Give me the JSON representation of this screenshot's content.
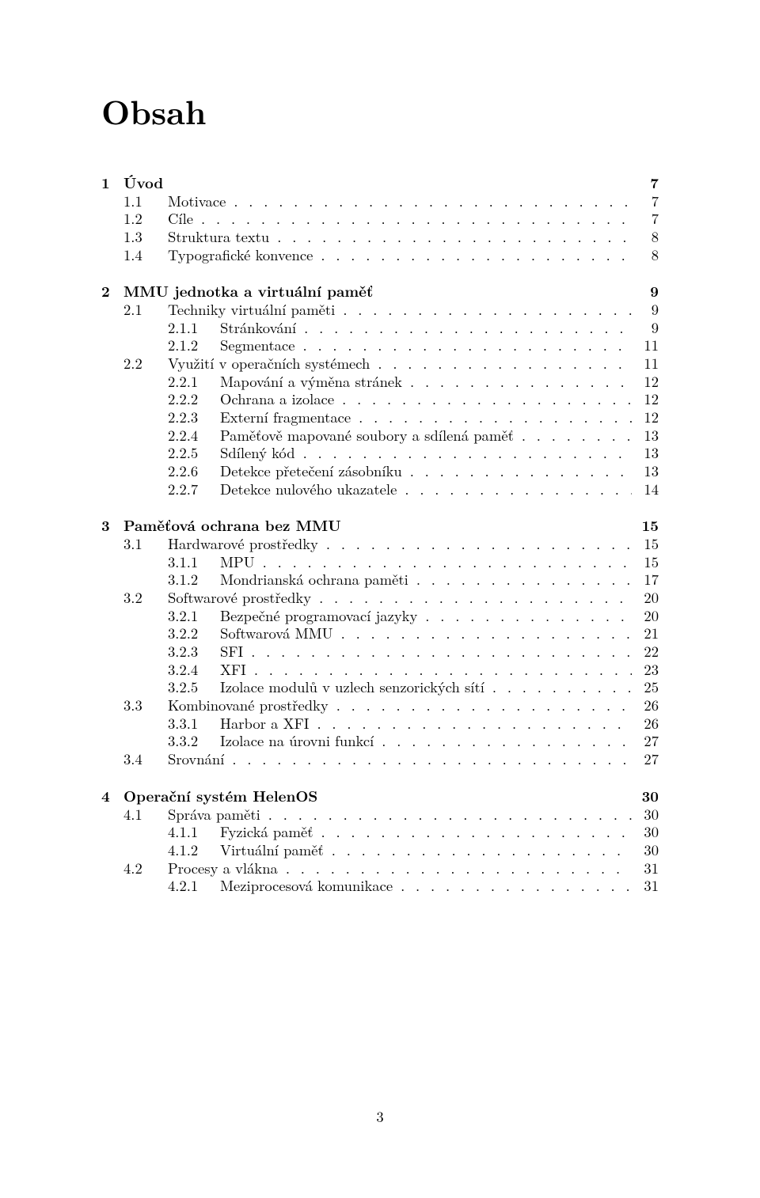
{
  "title": "Obsah",
  "footer_page": "3",
  "chapters": [
    {
      "num": "1",
      "title": "Úvod",
      "page": "7",
      "sections": [
        {
          "num": "1.1",
          "title": "Motivace",
          "page": "7",
          "subs": []
        },
        {
          "num": "1.2",
          "title": "Cíle",
          "page": "7",
          "subs": []
        },
        {
          "num": "1.3",
          "title": "Struktura textu",
          "page": "8",
          "subs": []
        },
        {
          "num": "1.4",
          "title": "Typografické konvence",
          "page": "8",
          "subs": []
        }
      ]
    },
    {
      "num": "2",
      "title": "MMU jednotka a virtuální paměť",
      "page": "9",
      "sections": [
        {
          "num": "2.1",
          "title": "Techniky virtuální paměti",
          "page": "9",
          "subs": [
            {
              "num": "2.1.1",
              "title": "Stránkování",
              "page": "9"
            },
            {
              "num": "2.1.2",
              "title": "Segmentace",
              "page": "11"
            }
          ]
        },
        {
          "num": "2.2",
          "title": "Využití v operačních systémech",
          "page": "11",
          "subs": [
            {
              "num": "2.2.1",
              "title": "Mapování a výměna stránek",
              "page": "12"
            },
            {
              "num": "2.2.2",
              "title": "Ochrana a izolace",
              "page": "12"
            },
            {
              "num": "2.2.3",
              "title": "Externí fragmentace",
              "page": "12"
            },
            {
              "num": "2.2.4",
              "title": "Paměťově mapované soubory a sdílená paměť",
              "page": "13"
            },
            {
              "num": "2.2.5",
              "title": "Sdílený kód",
              "page": "13"
            },
            {
              "num": "2.2.6",
              "title": "Detekce přetečení zásobníku",
              "page": "13"
            },
            {
              "num": "2.2.7",
              "title": "Detekce nulového ukazatele",
              "page": "14"
            }
          ]
        }
      ]
    },
    {
      "num": "3",
      "title": "Paměťová ochrana bez MMU",
      "page": "15",
      "sections": [
        {
          "num": "3.1",
          "title": "Hardwarové prostředky",
          "page": "15",
          "subs": [
            {
              "num": "3.1.1",
              "title": "MPU",
              "page": "15"
            },
            {
              "num": "3.1.2",
              "title": "Mondrianská ochrana paměti",
              "page": "17"
            }
          ]
        },
        {
          "num": "3.2",
          "title": "Softwarové prostředky",
          "page": "20",
          "subs": [
            {
              "num": "3.2.1",
              "title": "Bezpečné programovací jazyky",
              "page": "20"
            },
            {
              "num": "3.2.2",
              "title": "Softwarová MMU",
              "page": "21"
            },
            {
              "num": "3.2.3",
              "title": "SFI",
              "page": "22"
            },
            {
              "num": "3.2.4",
              "title": "XFI",
              "page": "23"
            },
            {
              "num": "3.2.5",
              "title": "Izolace modulů v uzlech senzorických sítí",
              "page": "25"
            }
          ]
        },
        {
          "num": "3.3",
          "title": "Kombinované prostředky",
          "page": "26",
          "subs": [
            {
              "num": "3.3.1",
              "title": "Harbor a XFI",
              "page": "26"
            },
            {
              "num": "3.3.2",
              "title": "Izolace na úrovni funkcí",
              "page": "27"
            }
          ]
        },
        {
          "num": "3.4",
          "title": "Srovnání",
          "page": "27",
          "subs": []
        }
      ]
    },
    {
      "num": "4",
      "title": "Operační systém HelenOS",
      "page": "30",
      "sections": [
        {
          "num": "4.1",
          "title": "Správa paměti",
          "page": "30",
          "subs": [
            {
              "num": "4.1.1",
              "title": "Fyzická paměť",
              "page": "30"
            },
            {
              "num": "4.1.2",
              "title": "Virtuální paměť",
              "page": "30"
            }
          ]
        },
        {
          "num": "4.2",
          "title": "Procesy a vlákna",
          "page": "31",
          "subs": [
            {
              "num": "4.2.1",
              "title": "Meziprocesová komunikace",
              "page": "31"
            }
          ]
        }
      ]
    }
  ]
}
